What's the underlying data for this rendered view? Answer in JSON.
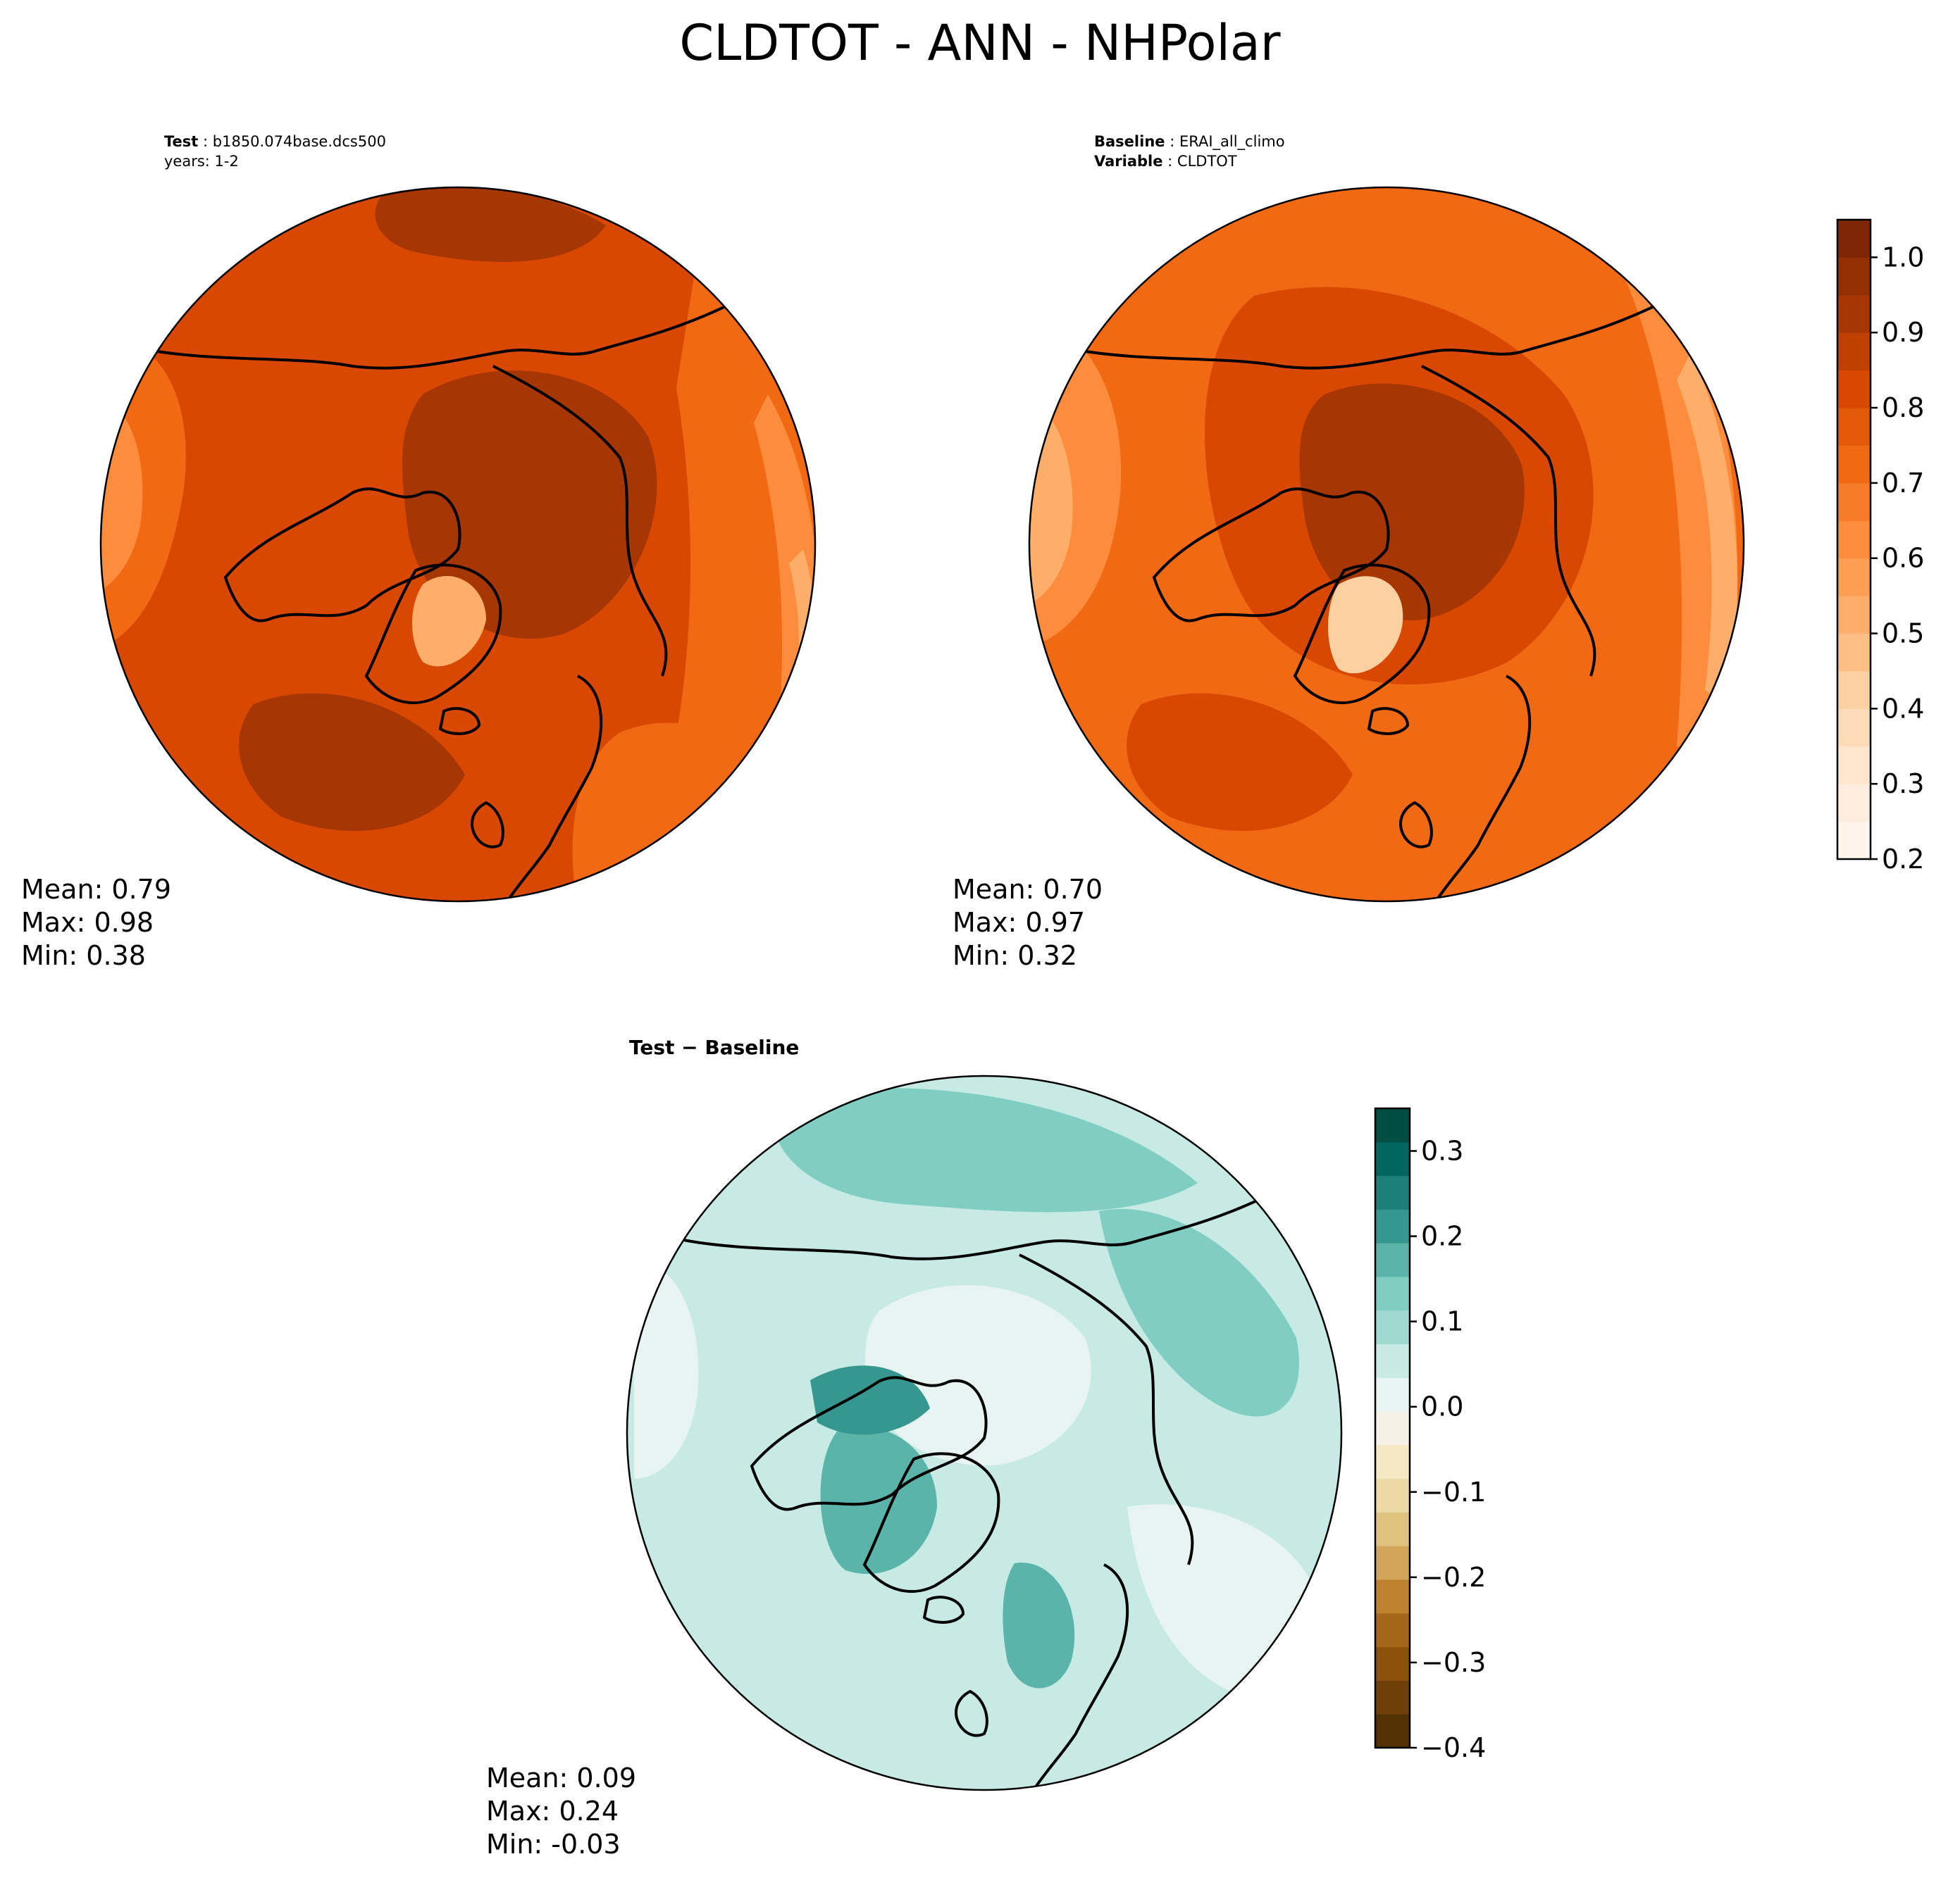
{
  "title": "CLDTOT - ANN - NHPolar",
  "panels": {
    "test": {
      "header_key": "Test",
      "header_value": "b1850.074base.dcs500",
      "header_line2": "years: 1-2",
      "stats": {
        "mean": "Mean:  0.79",
        "max": "Max:  0.98",
        "min": "Min:  0.38"
      },
      "palette": [
        "#fff5eb",
        "#fee6ce",
        "#fdd0a2",
        "#fdae6b",
        "#fd8d3c",
        "#f16913",
        "#d94801",
        "#a63603",
        "#7f2704"
      ]
    },
    "baseline": {
      "header_key": "Baseline",
      "header_value": "ERAI_all_climo",
      "header_key2": "Variable",
      "header_value2": "CLDTOT",
      "stats": {
        "mean": "Mean:  0.70",
        "max": "Max:  0.97",
        "min": "Min:  0.32"
      }
    },
    "diff": {
      "header": "Test − Baseline",
      "stats": {
        "mean": "Mean:  0.09",
        "max": "Max:  0.24",
        "min": "Min: -0.03"
      }
    }
  },
  "colorbars": {
    "main": {
      "range": [
        0.2,
        1.05
      ],
      "ticks": [
        "0.2",
        "0.3",
        "0.4",
        "0.5",
        "0.6",
        "0.7",
        "0.8",
        "0.9",
        "1.0"
      ],
      "colors": [
        "#fff5eb",
        "#feeddc",
        "#fee6ce",
        "#fddbb8",
        "#fdd0a2",
        "#fdbf86",
        "#fdae6b",
        "#fd9e54",
        "#fd8d3c",
        "#f77b28",
        "#f16913",
        "#e5590a",
        "#d94801",
        "#c04002",
        "#a63603",
        "#923003",
        "#7f2704"
      ]
    },
    "diff": {
      "range": [
        -0.4,
        0.35
      ],
      "ticks": [
        "−0.4",
        "−0.3",
        "−0.2",
        "−0.1",
        "0.0",
        "0.1",
        "0.2",
        "0.3"
      ],
      "colors": [
        "#543005",
        "#6f3f09",
        "#8c510a",
        "#a6661a",
        "#bf812d",
        "#d3a55a",
        "#dfc27d",
        "#ecd9a6",
        "#f6e8c3",
        "#f5f1e6",
        "#e8f4f1",
        "#c7eae5",
        "#a0d9d0",
        "#80cdc1",
        "#5ab4aa",
        "#35978f",
        "#1d7f77",
        "#01665e",
        "#004d43"
      ]
    }
  }
}
